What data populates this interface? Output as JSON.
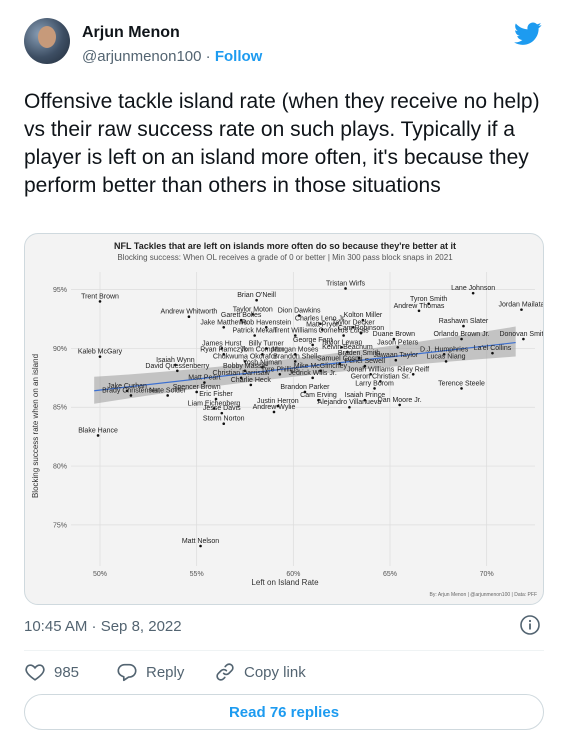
{
  "tweet": {
    "author_name": "Arjun Menon",
    "handle": "@arjunmenon100",
    "separator": "·",
    "follow_label": "Follow",
    "text": "Offensive tackle island rate (when they receive no help) vs their raw success rate on such plays. Typically if a player is left on an island more often, it's because they perform better than others in those situations",
    "time": "10:45 AM · Sep 8, 2022",
    "likes_count": "985",
    "reply_label": "Reply",
    "copy_link_label": "Copy link",
    "read_replies_label": "Read 76 replies",
    "accent_color": "#1d9bf0"
  },
  "icons": {
    "brand": "twitter-bird-icon",
    "info": "info-icon",
    "like": "heart-icon",
    "reply": "reply-icon",
    "link": "link-icon"
  },
  "chart_data": {
    "type": "scatter",
    "title": "NFL Tackles that are left on islands more often do so because they're better at it",
    "subtitle": "Blocking success: When OL receives a grade of 0 or better | Min 300 pass block snaps in 2021",
    "xlabel": "Left on Island Rate",
    "ylabel": "Blocking success rate when on an island",
    "credit": "By: Arjun Menon | @arjunmenon100 | Data: PFF",
    "xlim": [
      0.485,
      0.725
    ],
    "ylim": [
      0.715,
      0.965
    ],
    "x_ticks": [
      0.5,
      0.55,
      0.6,
      0.65,
      0.7
    ],
    "x_tick_labels": [
      "50%",
      "55%",
      "60%",
      "65%",
      "70%"
    ],
    "y_ticks": [
      0.75,
      0.8,
      0.85,
      0.9,
      0.95
    ],
    "y_tick_labels": [
      "75%",
      "80%",
      "85%",
      "90%",
      "95%"
    ],
    "grid": true,
    "trend_line": {
      "x": [
        0.497,
        0.715
      ],
      "y": [
        0.864,
        0.905
      ]
    },
    "points": [
      {
        "name": "Tristan Wirfs",
        "x": 0.627,
        "y": 0.951
      },
      {
        "name": "Lane Johnson",
        "x": 0.693,
        "y": 0.947
      },
      {
        "name": "Trent Brown",
        "x": 0.5,
        "y": 0.94
      },
      {
        "name": "Brian O'Neill",
        "x": 0.581,
        "y": 0.941
      },
      {
        "name": "Tyron Smith",
        "x": 0.67,
        "y": 0.938
      },
      {
        "name": "Jordan Mailata",
        "x": 0.718,
        "y": 0.933
      },
      {
        "name": "Andrew Thomas",
        "x": 0.665,
        "y": 0.932
      },
      {
        "name": "Andrew Whitworth",
        "x": 0.546,
        "y": 0.927
      },
      {
        "name": "Taylor Moton",
        "x": 0.579,
        "y": 0.929
      },
      {
        "name": "Dion Dawkins",
        "x": 0.603,
        "y": 0.928
      },
      {
        "name": "Garett Bolles",
        "x": 0.573,
        "y": 0.924
      },
      {
        "name": "Kolton Miller",
        "x": 0.636,
        "y": 0.924
      },
      {
        "name": "Charles Leno Jr.",
        "x": 0.614,
        "y": 0.921
      },
      {
        "name": "Rashawn Slater",
        "x": 0.688,
        "y": 0.919
      },
      {
        "name": "Taylor Decker",
        "x": 0.631,
        "y": 0.918
      },
      {
        "name": "Jake Matthews",
        "x": 0.564,
        "y": 0.918
      },
      {
        "name": "Rob Havenstein",
        "x": 0.586,
        "y": 0.918
      },
      {
        "name": "Matt Pryor",
        "x": 0.615,
        "y": 0.916
      },
      {
        "name": "Cam Robinson",
        "x": 0.635,
        "y": 0.913
      },
      {
        "name": "Patrick Mekari",
        "x": 0.58,
        "y": 0.911
      },
      {
        "name": "Trent Williams",
        "x": 0.601,
        "y": 0.911
      },
      {
        "name": "Cornelius Lucas",
        "x": 0.626,
        "y": 0.911
      },
      {
        "name": "Duane Brown",
        "x": 0.652,
        "y": 0.908
      },
      {
        "name": "Orlando Brown Jr.",
        "x": 0.687,
        "y": 0.908
      },
      {
        "name": "Donovan Smith",
        "x": 0.719,
        "y": 0.908
      },
      {
        "name": "George Fant",
        "x": 0.61,
        "y": 0.903
      },
      {
        "name": "Taylor Lewan",
        "x": 0.625,
        "y": 0.901
      },
      {
        "name": "Jason Peters",
        "x": 0.654,
        "y": 0.901
      },
      {
        "name": "James Hurst",
        "x": 0.563,
        "y": 0.9
      },
      {
        "name": "Billy Turner",
        "x": 0.586,
        "y": 0.9
      },
      {
        "name": "Kelvin Beachum",
        "x": 0.628,
        "y": 0.897
      },
      {
        "name": "La'el Collins",
        "x": 0.703,
        "y": 0.896
      },
      {
        "name": "D.J. Humphries",
        "x": 0.678,
        "y": 0.895
      },
      {
        "name": "Ryan Ramczyk",
        "x": 0.564,
        "y": 0.895
      },
      {
        "name": "Tom Compton",
        "x": 0.584,
        "y": 0.895
      },
      {
        "name": "Morgan Moses",
        "x": 0.601,
        "y": 0.895
      },
      {
        "name": "Kaleb McGary",
        "x": 0.5,
        "y": 0.893
      },
      {
        "name": "Braden Smith",
        "x": 0.634,
        "y": 0.892
      },
      {
        "name": "Jawaan Taylor",
        "x": 0.653,
        "y": 0.89
      },
      {
        "name": "Lucas Niang",
        "x": 0.679,
        "y": 0.889
      },
      {
        "name": "Chukwuma Okorafor",
        "x": 0.575,
        "y": 0.889
      },
      {
        "name": "Brandon Shell",
        "x": 0.601,
        "y": 0.889
      },
      {
        "name": "Samuel Cosmi",
        "x": 0.624,
        "y": 0.887
      },
      {
        "name": "Isaiah Wynn",
        "x": 0.539,
        "y": 0.886
      },
      {
        "name": "Penei Sewell",
        "x": 0.637,
        "y": 0.885
      },
      {
        "name": "Yosh Nijman",
        "x": 0.584,
        "y": 0.884
      },
      {
        "name": "David Quessenberry",
        "x": 0.54,
        "y": 0.881
      },
      {
        "name": "Bobby Massie",
        "x": 0.575,
        "y": 0.881
      },
      {
        "name": "Mike McGlinchey",
        "x": 0.614,
        "y": 0.881
      },
      {
        "name": "Tyre Phillips",
        "x": 0.593,
        "y": 0.878
      },
      {
        "name": "Jonah Williams",
        "x": 0.64,
        "y": 0.878
      },
      {
        "name": "Riley Reiff",
        "x": 0.662,
        "y": 0.878
      },
      {
        "name": "Christian Darrisaw",
        "x": 0.573,
        "y": 0.875
      },
      {
        "name": "Jedrick Wills Jr.",
        "x": 0.61,
        "y": 0.875
      },
      {
        "name": "Geron Christian Sr.",
        "x": 0.645,
        "y": 0.872
      },
      {
        "name": "Matt Peart",
        "x": 0.554,
        "y": 0.871
      },
      {
        "name": "Charlie Heck",
        "x": 0.578,
        "y": 0.869
      },
      {
        "name": "Larry Borom",
        "x": 0.642,
        "y": 0.866
      },
      {
        "name": "Terence Steele",
        "x": 0.687,
        "y": 0.866
      },
      {
        "name": "Jake Curhan",
        "x": 0.514,
        "y": 0.864
      },
      {
        "name": "Brandon Parker",
        "x": 0.606,
        "y": 0.863
      },
      {
        "name": "Spencer Brown",
        "x": 0.55,
        "y": 0.863
      },
      {
        "name": "Brady Christensen",
        "x": 0.516,
        "y": 0.86
      },
      {
        "name": "Nate Solder",
        "x": 0.535,
        "y": 0.86
      },
      {
        "name": "Eric Fisher",
        "x": 0.56,
        "y": 0.857
      },
      {
        "name": "Cam Erving",
        "x": 0.613,
        "y": 0.856
      },
      {
        "name": "Isaiah Prince",
        "x": 0.637,
        "y": 0.856
      },
      {
        "name": "Justin Herron",
        "x": 0.592,
        "y": 0.851
      },
      {
        "name": "Alejandro Villanueva",
        "x": 0.629,
        "y": 0.85
      },
      {
        "name": "Dan Moore Jr.",
        "x": 0.655,
        "y": 0.852
      },
      {
        "name": "Liam Eichenberg",
        "x": 0.559,
        "y": 0.849
      },
      {
        "name": "Jesse Davis",
        "x": 0.563,
        "y": 0.845
      },
      {
        "name": "Andrew Wylie",
        "x": 0.59,
        "y": 0.846
      },
      {
        "name": "Storm Norton",
        "x": 0.564,
        "y": 0.836
      },
      {
        "name": "Blake Hance",
        "x": 0.499,
        "y": 0.826
      },
      {
        "name": "Matt Nelson",
        "x": 0.552,
        "y": 0.732
      }
    ]
  }
}
